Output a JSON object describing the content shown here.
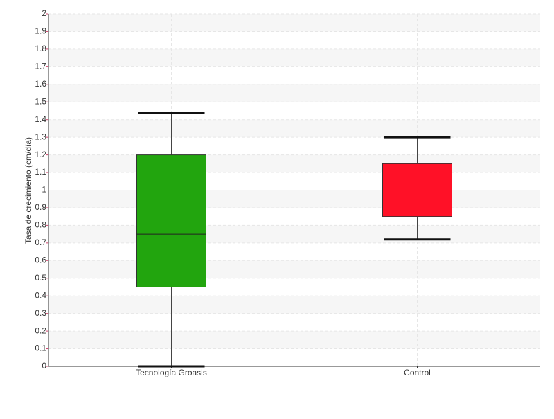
{
  "chart_data": {
    "type": "box",
    "y_label": "Tasa de crecimiento (cm/día)",
    "categories": [
      "Tecnología Groasis",
      "Control"
    ],
    "colors": [
      "#22a50e",
      "#ff1127"
    ],
    "low": [
      0,
      0.72
    ],
    "q1": [
      0.45,
      0.85
    ],
    "median": [
      0.75,
      1.0
    ],
    "q3": [
      1.2,
      1.15
    ],
    "high": [
      1.44,
      1.3
    ],
    "ylim": [
      0,
      2
    ],
    "yticks": [
      0,
      0.1,
      0.2,
      0.3,
      0.4,
      0.5,
      0.6,
      0.7,
      0.8,
      0.9,
      1,
      1.1,
      1.2,
      1.3,
      1.4,
      1.5,
      1.6,
      1.7,
      1.8,
      1.9,
      2
    ],
    "grid": true
  }
}
